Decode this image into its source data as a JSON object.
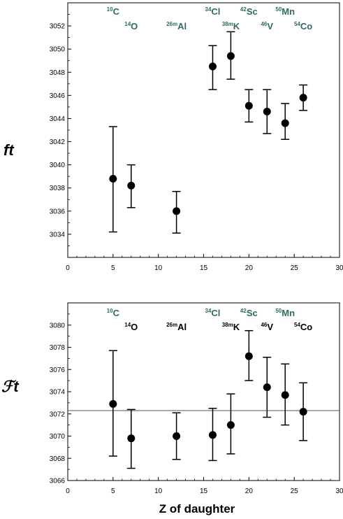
{
  "chart_data": [
    {
      "type": "scatter",
      "ylabel": "ft",
      "xlim": [
        0,
        30
      ],
      "ylim": [
        3032,
        3054
      ],
      "x_ticks": [
        "0",
        "5",
        "10",
        "15",
        "20",
        "25",
        "30"
      ],
      "y_ticks": [
        "3034",
        "3036",
        "3038",
        "3040",
        "3042",
        "3044",
        "3046",
        "3048",
        "3050",
        "3052"
      ],
      "points": [
        {
          "x": 5,
          "y": 3038.8,
          "lo": 3034.2,
          "hi": 3043.3
        },
        {
          "x": 7,
          "y": 3038.2,
          "lo": 3036.3,
          "hi": 3040.0
        },
        {
          "x": 12,
          "y": 3036.0,
          "lo": 3034.1,
          "hi": 3037.7
        },
        {
          "x": 16,
          "y": 3048.5,
          "lo": 3046.5,
          "hi": 3050.3
        },
        {
          "x": 18,
          "y": 3049.4,
          "lo": 3047.4,
          "hi": 3051.5
        },
        {
          "x": 20,
          "y": 3045.1,
          "lo": 3043.7,
          "hi": 3046.5
        },
        {
          "x": 22,
          "y": 3044.6,
          "lo": 3042.7,
          "hi": 3046.5
        },
        {
          "x": 24,
          "y": 3043.6,
          "lo": 3042.2,
          "hi": 3045.3
        },
        {
          "x": 26,
          "y": 3045.8,
          "lo": 3044.7,
          "hi": 3046.9
        }
      ],
      "nuclide_labels": [
        {
          "mass": "10",
          "sym": "C",
          "row": 1,
          "color": "green"
        },
        {
          "mass": "14",
          "sym": "O",
          "row": 2,
          "color": "green"
        },
        {
          "mass": "26m",
          "sym": "Al",
          "row": 2,
          "color": "green"
        },
        {
          "mass": "34",
          "sym": "Cl",
          "row": 1,
          "color": "green"
        },
        {
          "mass": "38m",
          "sym": "K",
          "row": 2,
          "color": "green"
        },
        {
          "mass": "42",
          "sym": "Sc",
          "row": 1,
          "color": "green"
        },
        {
          "mass": "46",
          "sym": "V",
          "row": 2,
          "color": "green"
        },
        {
          "mass": "50",
          "sym": "Mn",
          "row": 1,
          "color": "green"
        },
        {
          "mass": "54",
          "sym": "Co",
          "row": 2,
          "color": "green"
        }
      ]
    },
    {
      "type": "scatter",
      "ylabel": "ℱt",
      "xlabel": "Z of daughter",
      "xlim": [
        0,
        30
      ],
      "ylim": [
        3066,
        3082
      ],
      "x_ticks": [
        "0",
        "5",
        "10",
        "15",
        "20",
        "25",
        "30"
      ],
      "y_ticks": [
        "3066",
        "3068",
        "3070",
        "3072",
        "3074",
        "3076",
        "3078",
        "3080"
      ],
      "average_line": 3072.3,
      "points": [
        {
          "x": 5,
          "y": 3072.9,
          "lo": 3068.2,
          "hi": 3077.7
        },
        {
          "x": 7,
          "y": 3069.8,
          "lo": 3067.1,
          "hi": 3072.4
        },
        {
          "x": 12,
          "y": 3070.0,
          "lo": 3067.9,
          "hi": 3072.1
        },
        {
          "x": 16,
          "y": 3070.1,
          "lo": 3067.8,
          "hi": 3072.5
        },
        {
          "x": 18,
          "y": 3071.0,
          "lo": 3068.4,
          "hi": 3073.8
        },
        {
          "x": 20,
          "y": 3077.2,
          "lo": 3075.0,
          "hi": 3079.5
        },
        {
          "x": 22,
          "y": 3074.4,
          "lo": 3071.7,
          "hi": 3077.1
        },
        {
          "x": 24,
          "y": 3073.7,
          "lo": 3071.0,
          "hi": 3076.5
        },
        {
          "x": 26,
          "y": 3072.2,
          "lo": 3069.6,
          "hi": 3074.8
        }
      ],
      "nuclide_labels": [
        {
          "mass": "10",
          "sym": "C",
          "row": 1,
          "color": "green"
        },
        {
          "mass": "14",
          "sym": "O",
          "row": 2,
          "color": "black"
        },
        {
          "mass": "26m",
          "sym": "Al",
          "row": 2,
          "color": "black"
        },
        {
          "mass": "34",
          "sym": "Cl",
          "row": 1,
          "color": "green"
        },
        {
          "mass": "38m",
          "sym": "K",
          "row": 2,
          "color": "black"
        },
        {
          "mass": "42",
          "sym": "Sc",
          "row": 1,
          "color": "green"
        },
        {
          "mass": "46",
          "sym": "V",
          "row": 2,
          "color": "black"
        },
        {
          "mass": "50",
          "sym": "Mn",
          "row": 1,
          "color": "green"
        },
        {
          "mass": "54",
          "sym": "Co",
          "row": 2,
          "color": "black"
        }
      ]
    }
  ]
}
